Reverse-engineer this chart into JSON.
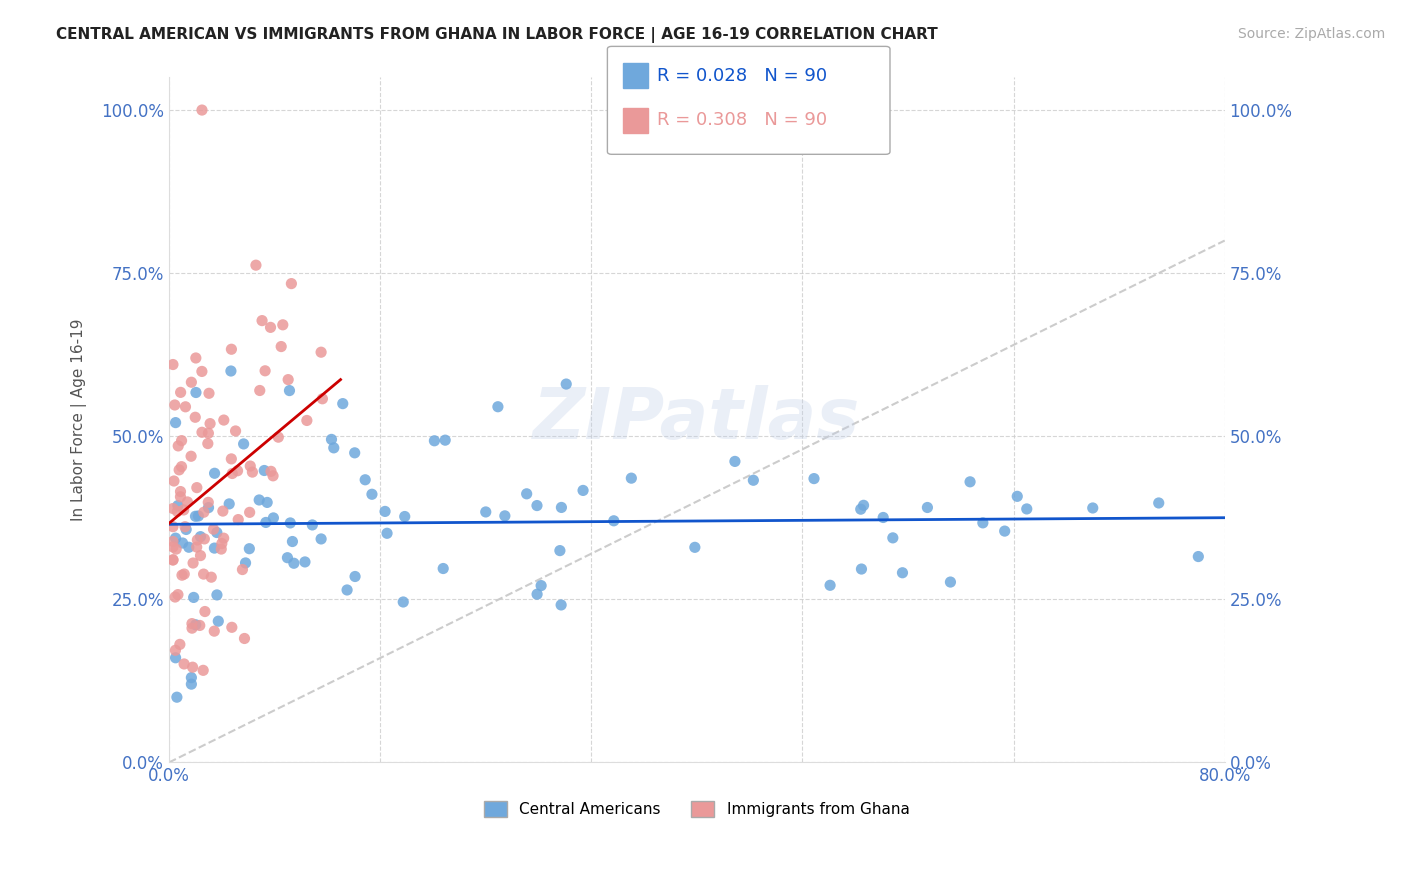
{
  "title": "CENTRAL AMERICAN VS IMMIGRANTS FROM GHANA IN LABOR FORCE | AGE 16-19 CORRELATION CHART",
  "source": "Source: ZipAtlas.com",
  "ylabel": "In Labor Force | Age 16-19",
  "xlim": [
    0.0,
    0.8
  ],
  "ylim": [
    0.0,
    1.05
  ],
  "ytick_vals": [
    0.0,
    0.25,
    0.5,
    0.75,
    1.0
  ],
  "xtick_vals": [
    0.0,
    0.16,
    0.32,
    0.48,
    0.64,
    0.8
  ],
  "blue_color": "#6fa8dc",
  "pink_color": "#ea9999",
  "trend_blue_color": "#1155cc",
  "trend_pink_color": "#cc0000",
  "trend_diag_color": "#cccccc",
  "legend_r_blue": "0.028",
  "legend_n_blue": "90",
  "legend_r_pink": "0.308",
  "legend_n_pink": "90",
  "watermark": "ZIPatlas",
  "tick_color": "#4472c4"
}
